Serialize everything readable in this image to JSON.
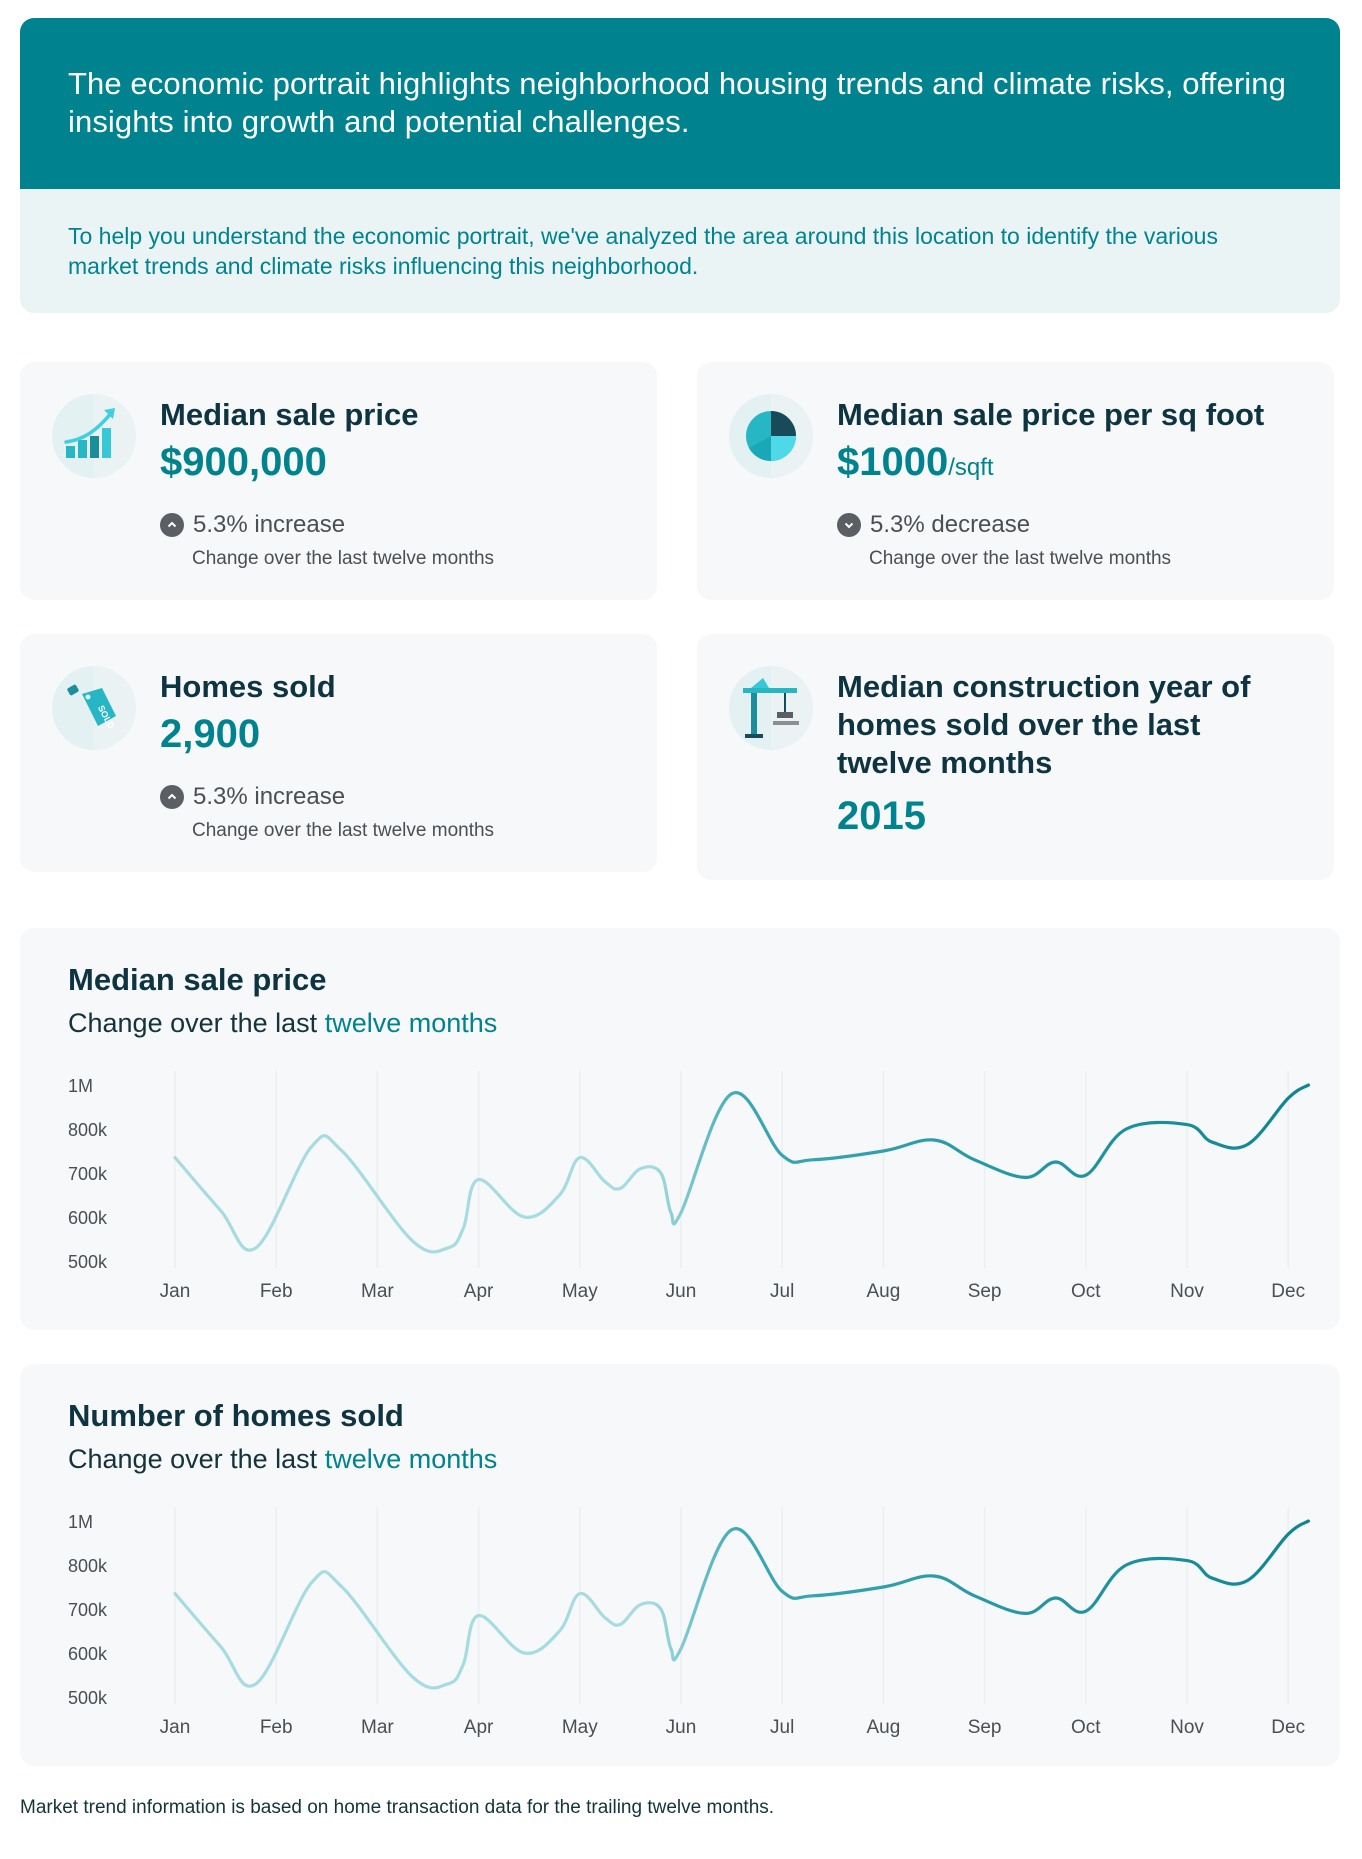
{
  "hero": {
    "title": "The economic portrait highlights neighborhood housing trends and climate risks, offering insights into growth and potential challenges.",
    "subtitle": "To help you understand the economic portrait, we've analyzed the area around this location to identify the various market trends and climate risks influencing this neighborhood."
  },
  "stats": {
    "median_price": {
      "title": "Median sale price",
      "value": "$900,000",
      "change": "5.3% increase",
      "change_direction": "up",
      "note": "Change over the last twelve months",
      "icon": "bar-chart-growth-icon"
    },
    "price_per_sqft": {
      "title": "Median sale price per sq foot",
      "value": "$1000",
      "unit": "/sqft",
      "change": "5.3% decrease",
      "change_direction": "down",
      "note": "Change over the last twelve months",
      "icon": "pie-chart-icon"
    },
    "homes_sold": {
      "title": "Homes sold",
      "value": "2,900",
      "change": "5.3% increase",
      "change_direction": "up",
      "note": "Change over the last twelve months",
      "icon": "sold-tag-icon"
    },
    "construction_year": {
      "title": "Median construction year of homes sold over the last twelve months",
      "value": "2015",
      "icon": "construction-crane-icon"
    }
  },
  "colors": {
    "brand": "#00838f",
    "line_light": "#a6dbe2",
    "line_dark": "#0f8594",
    "card_bg": "#f6f8f9"
  },
  "chart_data": [
    {
      "type": "line",
      "title": "Median sale price",
      "subtitle_prefix": "Change over the last",
      "subtitle_highlight": "twelve months",
      "categories": [
        "Jan",
        "Feb",
        "Mar",
        "Apr",
        "May",
        "Jun",
        "Jul",
        "Aug",
        "Sep",
        "Oct",
        "Nov",
        "Dec"
      ],
      "ytick_labels": [
        "1M",
        "800k",
        "700k",
        "600k",
        "500k"
      ],
      "x": [
        0,
        0.45,
        0.8,
        1.35,
        1.65,
        2.35,
        2.7,
        2.85,
        3.0,
        3.45,
        3.8,
        4.0,
        4.25,
        4.4,
        4.6,
        4.8,
        4.9,
        5.0,
        5.5,
        6.0,
        6.3,
        7.0,
        7.5,
        7.9,
        8.4,
        8.7,
        9.0,
        9.4,
        10.0,
        10.25,
        10.6,
        11.0,
        11.2
      ],
      "y": [
        735,
        615,
        530,
        760,
        750,
        545,
        530,
        575,
        685,
        600,
        650,
        735,
        680,
        665,
        710,
        700,
        610,
        610,
        960,
        740,
        730,
        750,
        775,
        730,
        690,
        725,
        695,
        800,
        820,
        770,
        765,
        940,
        1000
      ],
      "color_gradient": [
        "#a6dbe2",
        "#0f8594"
      ]
    },
    {
      "type": "line",
      "title": "Number of homes sold",
      "subtitle_prefix": "Change over the last",
      "subtitle_highlight": "twelve months",
      "categories": [
        "Jan",
        "Feb",
        "Mar",
        "Apr",
        "May",
        "Jun",
        "Jul",
        "Aug",
        "Sep",
        "Oct",
        "Nov",
        "Dec"
      ],
      "ytick_labels": [
        "1M",
        "800k",
        "700k",
        "600k",
        "500k"
      ],
      "x": [
        0,
        0.45,
        0.8,
        1.35,
        1.65,
        2.35,
        2.7,
        2.85,
        3.0,
        3.45,
        3.8,
        4.0,
        4.25,
        4.4,
        4.6,
        4.8,
        4.9,
        5.0,
        5.5,
        6.0,
        6.3,
        7.0,
        7.5,
        7.9,
        8.4,
        8.7,
        9.0,
        9.4,
        10.0,
        10.25,
        10.6,
        11.0,
        11.2
      ],
      "y": [
        735,
        615,
        530,
        760,
        750,
        545,
        530,
        575,
        685,
        600,
        650,
        735,
        680,
        665,
        710,
        700,
        610,
        610,
        960,
        740,
        730,
        750,
        775,
        730,
        690,
        725,
        695,
        800,
        820,
        770,
        765,
        940,
        1000
      ],
      "color_gradient": [
        "#a6dbe2",
        "#0f8594"
      ]
    }
  ],
  "footnote": "Market trend information is based on home transaction data for the trailing twelve months."
}
